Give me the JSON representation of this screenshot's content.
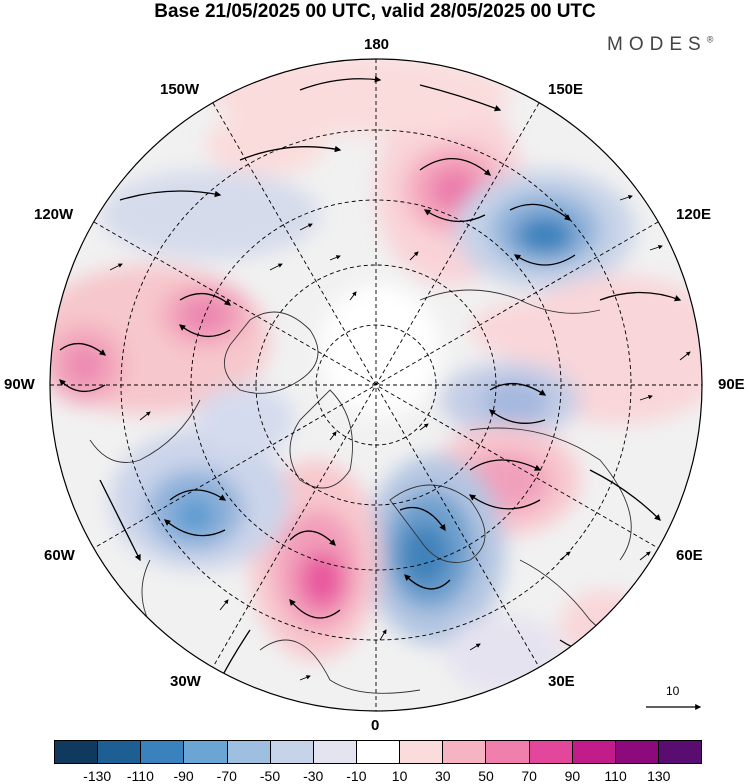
{
  "title": "Base 21/05/2025 00 UTC, valid 28/05/2025 00 UTC",
  "logo": {
    "text": "MODES",
    "mark": "®"
  },
  "longitude_labels": {
    "top": "180",
    "top_left": "150W",
    "top_right": "150E",
    "upper_left": "120W",
    "upper_right": "120E",
    "left": "90W",
    "right": "90E",
    "lower_left": "60W",
    "lower_right": "60E",
    "bottom_left": "30W",
    "bottom_right": "30E",
    "bottom": "0"
  },
  "reference_vector": {
    "label": "10"
  },
  "colorbar": {
    "colors": [
      "#0f3a5e",
      "#1e5f93",
      "#3a82bd",
      "#6aa5d4",
      "#9fbfe0",
      "#c7d3e8",
      "#e4e4f0",
      "#ffffff",
      "#fbdcdc",
      "#f6b3c1",
      "#f07fae",
      "#e3479c",
      "#c21b8a",
      "#8d0a7d",
      "#5a0d70"
    ],
    "ticks": [
      "-130",
      "-110",
      "-90",
      "-70",
      "-50",
      "-30",
      "-10",
      "10",
      "30",
      "50",
      "70",
      "90",
      "110",
      "130"
    ]
  },
  "anomalies": [
    {
      "name": "north-pacific-high",
      "sign": "positive",
      "value": 70
    },
    {
      "name": "east-siberia-low",
      "sign": "negative",
      "value": -90
    },
    {
      "name": "central-siberia-low",
      "sign": "negative",
      "value": -50
    },
    {
      "name": "west-siberia-high",
      "sign": "positive",
      "value": 50
    },
    {
      "name": "scandinavia-low",
      "sign": "negative",
      "value": -90
    },
    {
      "name": "north-atlantic-high",
      "sign": "positive",
      "value": 90
    },
    {
      "name": "labrador-low",
      "sign": "negative",
      "value": -70
    },
    {
      "name": "hudson-bay-high",
      "sign": "positive",
      "value": 70
    },
    {
      "name": "northeast-pacific-high",
      "sign": "positive",
      "value": 70
    }
  ]
}
